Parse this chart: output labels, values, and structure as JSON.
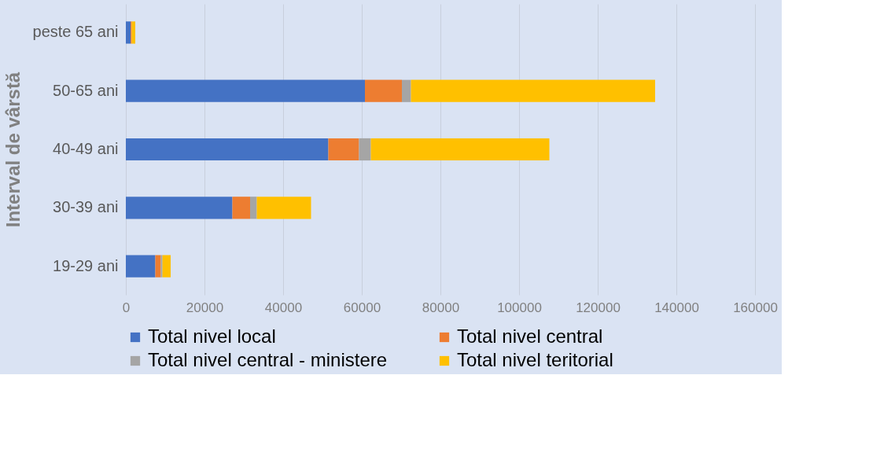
{
  "chart_data": {
    "type": "bar",
    "orientation": "horizontal",
    "stacked": true,
    "ylabel": "Interval de vârstă",
    "categories": [
      "peste 65 ani",
      "50-65 ani",
      "40-49 ani",
      "30-39 ani",
      "19-29 ani"
    ],
    "series": [
      {
        "name": "Total nivel local",
        "color": "#4472c4",
        "values": [
          1200,
          60800,
          51500,
          27100,
          7500
        ]
      },
      {
        "name": "Total nivel central",
        "color": "#ed7d31",
        "values": [
          300,
          9400,
          7800,
          4500,
          1400
        ]
      },
      {
        "name": "Total nivel central - ministere",
        "color": "#a5a5a5",
        "values": [
          null,
          2300,
          3000,
          1700,
          400
        ]
      },
      {
        "name": "Total nivel teritorial",
        "color": "#ffc000",
        "values": [
          900,
          62100,
          45400,
          13800,
          2100
        ]
      }
    ],
    "xlim": [
      0,
      160000
    ],
    "xticks": [
      0,
      20000,
      40000,
      60000,
      80000,
      100000,
      120000,
      140000,
      160000
    ],
    "grid": "x",
    "legend": "bottom"
  }
}
